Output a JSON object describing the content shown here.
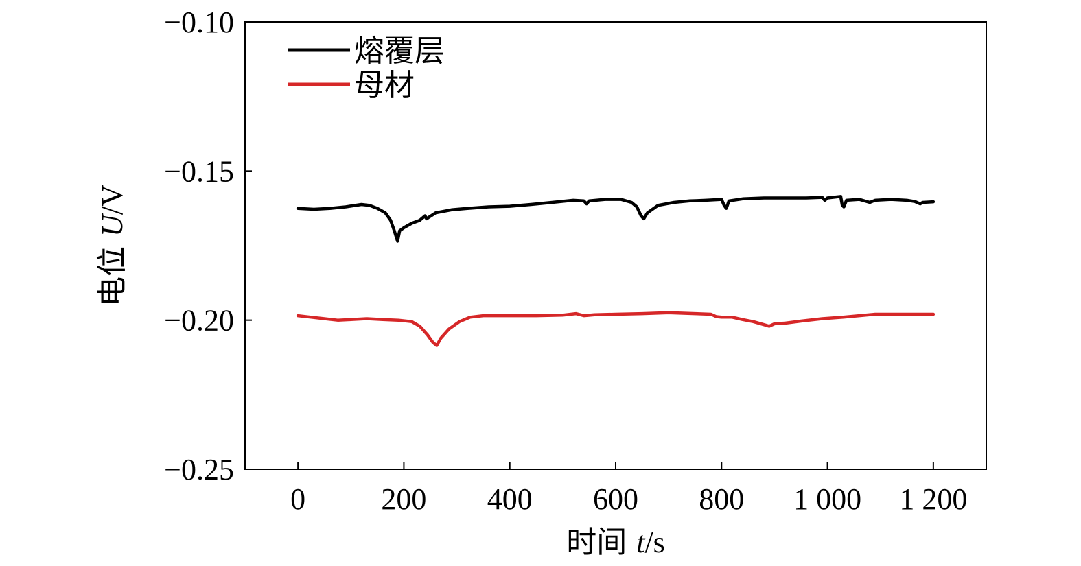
{
  "chart_data": {
    "type": "line",
    "xlabel": "时间 t/s",
    "xlabel_parts": {
      "prefix": "时间 ",
      "var": "t",
      "unit": "/s"
    },
    "ylabel": "电位 U/V",
    "ylabel_parts": {
      "prefix": "电位 ",
      "var": "U",
      "unit": "/V"
    },
    "xlim": [
      -100,
      1300
    ],
    "ylim": [
      -0.25,
      -0.1
    ],
    "x_ticks": [
      {
        "value": 0,
        "label": "0"
      },
      {
        "value": 200,
        "label": "200"
      },
      {
        "value": 400,
        "label": "400"
      },
      {
        "value": 600,
        "label": "600"
      },
      {
        "value": 800,
        "label": "800"
      },
      {
        "value": 1000,
        "label": "1 000"
      },
      {
        "value": 1200,
        "label": "1 200"
      }
    ],
    "y_ticks": [
      {
        "value": -0.1,
        "label": "−0.10"
      },
      {
        "value": -0.15,
        "label": "−0.15"
      },
      {
        "value": -0.2,
        "label": "−0.20"
      },
      {
        "value": -0.25,
        "label": "−0.25"
      }
    ],
    "grid": false,
    "legend_position": "top-left",
    "series": [
      {
        "name": "熔覆层",
        "color": "#000000",
        "points": [
          [
            0,
            -0.1625
          ],
          [
            30,
            -0.1628
          ],
          [
            60,
            -0.1625
          ],
          [
            90,
            -0.162
          ],
          [
            120,
            -0.1612
          ],
          [
            135,
            -0.1615
          ],
          [
            150,
            -0.1625
          ],
          [
            165,
            -0.164
          ],
          [
            175,
            -0.1665
          ],
          [
            182,
            -0.17
          ],
          [
            188,
            -0.1735
          ],
          [
            192,
            -0.17
          ],
          [
            200,
            -0.169
          ],
          [
            215,
            -0.1675
          ],
          [
            230,
            -0.1665
          ],
          [
            240,
            -0.165
          ],
          [
            243,
            -0.166
          ],
          [
            247,
            -0.1655
          ],
          [
            260,
            -0.164
          ],
          [
            290,
            -0.163
          ],
          [
            320,
            -0.1625
          ],
          [
            360,
            -0.162
          ],
          [
            400,
            -0.1618
          ],
          [
            440,
            -0.1612
          ],
          [
            480,
            -0.1605
          ],
          [
            520,
            -0.1598
          ],
          [
            540,
            -0.16
          ],
          [
            545,
            -0.161
          ],
          [
            550,
            -0.16
          ],
          [
            580,
            -0.1595
          ],
          [
            610,
            -0.1595
          ],
          [
            630,
            -0.1605
          ],
          [
            640,
            -0.162
          ],
          [
            648,
            -0.165
          ],
          [
            653,
            -0.166
          ],
          [
            660,
            -0.164
          ],
          [
            680,
            -0.1615
          ],
          [
            710,
            -0.1605
          ],
          [
            740,
            -0.16
          ],
          [
            770,
            -0.1598
          ],
          [
            800,
            -0.1595
          ],
          [
            805,
            -0.1615
          ],
          [
            809,
            -0.1625
          ],
          [
            814,
            -0.16
          ],
          [
            840,
            -0.1593
          ],
          [
            880,
            -0.159
          ],
          [
            920,
            -0.159
          ],
          [
            960,
            -0.159
          ],
          [
            990,
            -0.1588
          ],
          [
            995,
            -0.1598
          ],
          [
            1000,
            -0.159
          ],
          [
            1025,
            -0.1585
          ],
          [
            1028,
            -0.1615
          ],
          [
            1031,
            -0.162
          ],
          [
            1036,
            -0.1598
          ],
          [
            1060,
            -0.1595
          ],
          [
            1080,
            -0.1605
          ],
          [
            1090,
            -0.1598
          ],
          [
            1120,
            -0.1595
          ],
          [
            1150,
            -0.1598
          ],
          [
            1165,
            -0.1602
          ],
          [
            1175,
            -0.161
          ],
          [
            1180,
            -0.1605
          ],
          [
            1200,
            -0.1603
          ]
        ]
      },
      {
        "name": "母材",
        "color": "#d62728",
        "points": [
          [
            0,
            -0.1985
          ],
          [
            25,
            -0.199
          ],
          [
            50,
            -0.1995
          ],
          [
            75,
            -0.2
          ],
          [
            100,
            -0.1998
          ],
          [
            130,
            -0.1995
          ],
          [
            160,
            -0.1998
          ],
          [
            190,
            -0.2
          ],
          [
            215,
            -0.2005
          ],
          [
            230,
            -0.202
          ],
          [
            245,
            -0.205
          ],
          [
            255,
            -0.2075
          ],
          [
            262,
            -0.2085
          ],
          [
            270,
            -0.206
          ],
          [
            285,
            -0.203
          ],
          [
            305,
            -0.2005
          ],
          [
            325,
            -0.199
          ],
          [
            350,
            -0.1985
          ],
          [
            400,
            -0.1985
          ],
          [
            450,
            -0.1985
          ],
          [
            500,
            -0.1983
          ],
          [
            525,
            -0.1978
          ],
          [
            540,
            -0.1985
          ],
          [
            560,
            -0.1982
          ],
          [
            600,
            -0.198
          ],
          [
            650,
            -0.1978
          ],
          [
            700,
            -0.1975
          ],
          [
            750,
            -0.1978
          ],
          [
            780,
            -0.198
          ],
          [
            790,
            -0.1988
          ],
          [
            800,
            -0.199
          ],
          [
            820,
            -0.199
          ],
          [
            840,
            -0.1998
          ],
          [
            860,
            -0.2005
          ],
          [
            880,
            -0.2015
          ],
          [
            890,
            -0.202
          ],
          [
            900,
            -0.2012
          ],
          [
            920,
            -0.201
          ],
          [
            950,
            -0.2003
          ],
          [
            990,
            -0.1995
          ],
          [
            1030,
            -0.199
          ],
          [
            1060,
            -0.1985
          ],
          [
            1090,
            -0.198
          ],
          [
            1130,
            -0.198
          ],
          [
            1160,
            -0.198
          ],
          [
            1200,
            -0.198
          ]
        ]
      }
    ]
  }
}
